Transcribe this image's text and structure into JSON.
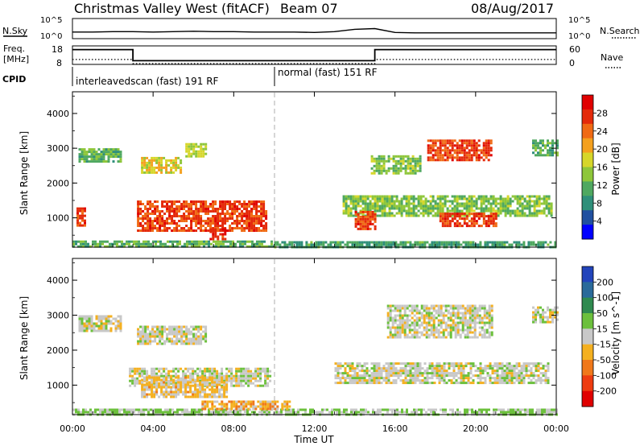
{
  "header": {
    "title": "Christmas Valley West (fitACF)",
    "beam": "Beam 07",
    "date": "08/Aug/2017"
  },
  "noise_panel": {
    "left_label": "N.Sky",
    "right_label": "N.Search",
    "tick_top": "10^5",
    "tick_bottom": "10^0"
  },
  "freq_panel": {
    "left_label_1": "Freq.",
    "left_label_2": "[MHz]",
    "left_ticks": [
      "18",
      "8"
    ],
    "right_ticks": [
      "60",
      "0"
    ],
    "right_label": "Nave"
  },
  "cpid_panel": {
    "label": "CPID",
    "segments": [
      {
        "name": "interleavedscan (fast) 191 RF",
        "start_hour": 0,
        "end_hour": 10
      },
      {
        "name": "normal (fast) 151 RF",
        "start_hour": 10,
        "end_hour": 24
      }
    ]
  },
  "x_axis": {
    "label": "Time UT",
    "ticks": [
      "00:00",
      "04:00",
      "08:00",
      "12:00",
      "16:00",
      "20:00",
      "00:00"
    ]
  },
  "power_panel": {
    "ylabel": "Slant Range [km]",
    "yticks": [
      "1000",
      "2000",
      "3000",
      "4000"
    ],
    "colorbar_label": "Power [dB]",
    "colorbar_ticks": [
      "28",
      "24",
      "20",
      "16",
      "12",
      "8",
      "4"
    ],
    "colors": [
      "#0000ff",
      "#2050a0",
      "#2f8f7a",
      "#4fa860",
      "#8ec63a",
      "#d6d62a",
      "#f4a01e",
      "#f06a14",
      "#e42a0a",
      "#e00000"
    ]
  },
  "velocity_panel": {
    "ylabel": "Slant Range [km]",
    "yticks": [
      "1000",
      "2000",
      "3000",
      "4000"
    ],
    "colorbar_label": "Velocity [m s^-1]",
    "colorbar_ticks": [
      "200",
      "100",
      "50",
      "15",
      "-15",
      "-50",
      "-100",
      "-200"
    ],
    "colors": [
      "#2244bb",
      "#2a6a9a",
      "#2f8a4f",
      "#6cc03c",
      "#c8c8c8",
      "#f4b020",
      "#f0781a",
      "#ee3c10",
      "#e00000"
    ]
  },
  "chart_data": [
    {
      "type": "line",
      "title": "N.Sky / N.Search",
      "x": [
        0,
        1,
        2,
        3,
        4,
        5,
        6,
        7,
        8,
        9,
        10,
        11,
        12,
        13,
        14,
        15,
        16,
        17,
        18,
        19,
        20,
        21,
        22,
        23,
        24
      ],
      "series": [
        {
          "name": "N.Sky",
          "values": [
            1.5,
            1.5,
            1.6,
            1.6,
            1.5,
            1.6,
            1.7,
            1.6,
            1.6,
            1.5,
            1.5,
            1.5,
            1.4,
            1.6,
            2.2,
            2.4,
            1.4,
            1.3,
            1.3,
            1.3,
            1.3,
            1.3,
            1.3,
            1.3,
            1.3
          ]
        }
      ],
      "ylim": [
        0,
        5
      ]
    },
    {
      "type": "line",
      "title": "Freq. / Nave",
      "x": [
        0,
        3,
        3,
        15,
        15,
        24
      ],
      "series": [
        {
          "name": "Freq.",
          "values": [
            16,
            16,
            10,
            10,
            16,
            16
          ]
        },
        {
          "name": "Nave",
          "values": [
            14,
            14,
            0,
            0,
            14,
            14
          ]
        }
      ],
      "ylim": [
        8,
        18
      ]
    },
    {
      "type": "heatmap",
      "title": "Power [dB]",
      "xlabel": "Time UT",
      "ylabel": "Slant Range [km]",
      "xlim": [
        0,
        24
      ],
      "ylim": [
        180,
        4600
      ],
      "regions": [
        {
          "t0": 0.3,
          "t1": 2.4,
          "r0": 2600,
          "r1": 3000,
          "value": 12
        },
        {
          "t0": 0.2,
          "t1": 0.6,
          "r0": 800,
          "r1": 1300,
          "value": 26
        },
        {
          "t0": 3.2,
          "t1": 9.6,
          "r0": 650,
          "r1": 1500,
          "value": 26
        },
        {
          "t0": 6.8,
          "t1": 7.6,
          "r0": 400,
          "r1": 700,
          "value": 28
        },
        {
          "t0": 3.4,
          "t1": 5.4,
          "r0": 2300,
          "r1": 2750,
          "value": 18
        },
        {
          "t0": 5.6,
          "t1": 6.6,
          "r0": 2750,
          "r1": 3150,
          "value": 16
        },
        {
          "t0": 0.0,
          "t1": 10.0,
          "r0": 180,
          "r1": 350,
          "value": 12
        },
        {
          "t0": 10.0,
          "t1": 24.0,
          "r0": 180,
          "r1": 330,
          "value": 10
        },
        {
          "t0": 13.4,
          "t1": 23.8,
          "r0": 1050,
          "r1": 1650,
          "value": 14
        },
        {
          "t0": 14.0,
          "t1": 15.0,
          "r0": 700,
          "r1": 1200,
          "value": 26
        },
        {
          "t0": 18.2,
          "t1": 21.0,
          "r0": 800,
          "r1": 1150,
          "value": 26
        },
        {
          "t0": 17.6,
          "t1": 20.8,
          "r0": 2650,
          "r1": 3250,
          "value": 26
        },
        {
          "t0": 14.8,
          "t1": 17.2,
          "r0": 2300,
          "r1": 2800,
          "value": 14
        },
        {
          "t0": 22.8,
          "t1": 24.0,
          "r0": 2800,
          "r1": 3250,
          "value": 12
        }
      ]
    },
    {
      "type": "heatmap",
      "title": "Velocity [m s^-1]",
      "xlabel": "Time UT",
      "ylabel": "Slant Range [km]",
      "xlim": [
        0,
        24
      ],
      "ylim": [
        180,
        4600
      ],
      "regions": [
        {
          "t0": 0.3,
          "t1": 2.4,
          "r0": 2550,
          "r1": 3000,
          "value": 0
        },
        {
          "t0": 2.8,
          "t1": 9.8,
          "r0": 1000,
          "r1": 1500,
          "value": 0
        },
        {
          "t0": 3.4,
          "t1": 7.6,
          "r0": 650,
          "r1": 1250,
          "value": -40
        },
        {
          "t0": 3.2,
          "t1": 6.6,
          "r0": 2150,
          "r1": 2700,
          "value": 0
        },
        {
          "t0": 0.0,
          "t1": 24.0,
          "r0": 180,
          "r1": 330,
          "value": 30
        },
        {
          "t0": 6.4,
          "t1": 10.8,
          "r0": 330,
          "r1": 560,
          "value": -60
        },
        {
          "t0": 13.0,
          "t1": 23.6,
          "r0": 1050,
          "r1": 1650,
          "value": 0
        },
        {
          "t0": 15.6,
          "t1": 20.8,
          "r0": 2400,
          "r1": 3300,
          "value": 0
        },
        {
          "t0": 22.8,
          "t1": 24.0,
          "r0": 2800,
          "r1": 3250,
          "value": 0
        }
      ]
    }
  ]
}
